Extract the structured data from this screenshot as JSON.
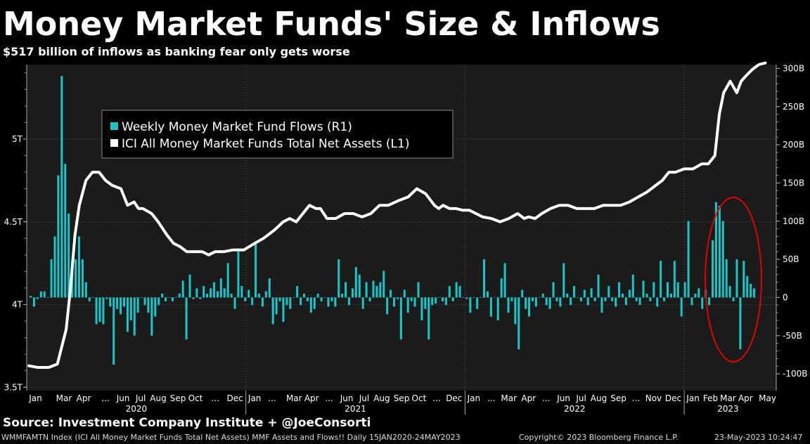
{
  "header": {
    "title": "Money Market Funds' Size & Inflows",
    "subtitle": "$517 billion of inflows as banking fear only gets worse"
  },
  "source": "Source: Investment Company Institute + @JoeConsorti",
  "footer": {
    "ticker": "WMMFAMTN Index (ICI All Money Market Funds Total Net Assets) MMF Assets and Flows!!  Daily 15JAN2020-24MAY2023",
    "copyright": "Copyright© 2023 Bloomberg Finance L.P.",
    "timestamp": "23-May-2023 10:24:47"
  },
  "colors": {
    "background": "#000000",
    "plot_bg": "#1b1b1b",
    "bars": "#1cc4c8",
    "line": "#ffffff",
    "highlight": "#e00000"
  },
  "chart_data": {
    "type": "bar+line",
    "legend": {
      "placement": "top-left",
      "entries": [
        "Weekly Money Market Fund Flows (R1)",
        "ICI All Money Market Funds Total Net Assets  (L1)"
      ]
    },
    "left_axis": {
      "ticks": [
        "5T",
        "4.5T",
        "4T",
        "3.5T"
      ],
      "range": [
        3.48,
        5.45
      ],
      "unit": "USD trillions"
    },
    "right_axis": {
      "ticks": [
        "300B",
        "250B",
        "200B",
        "150B",
        "100B",
        "50B",
        "0",
        "-50B",
        "-100B"
      ],
      "range": [
        -122,
        305
      ],
      "unit": "USD billions"
    },
    "x_axis": {
      "months": [
        "Jan",
        "Mar",
        "Apr",
        "...",
        "Jun",
        "Jul",
        "Aug",
        "Sep",
        "Oct",
        "...",
        "Dec",
        "Jan",
        "...",
        "Mar",
        "Apr",
        "...",
        "Jun",
        "Jul",
        "Aug",
        "Sep",
        "Oct",
        "...",
        "Dec",
        "Jan",
        "...",
        "Mar",
        "Apr",
        "...",
        "Jun",
        "Jul",
        "Aug",
        "Sep",
        "...",
        "Nov",
        "Dec",
        "Jan",
        "Feb",
        "Mar",
        "Apr",
        "May"
      ],
      "years": [
        "2020",
        "2021",
        "2022",
        "2023"
      ],
      "range": [
        2020.0,
        2023.42
      ]
    },
    "series": [
      {
        "name": "Weekly Money Market Fund Flows (R1)",
        "type": "bar",
        "axis": "right",
        "values": [
          2,
          -12,
          -2,
          8,
          8,
          0,
          50,
          80,
          160,
          290,
          175,
          110,
          50,
          50,
          80,
          50,
          20,
          -5,
          0,
          -35,
          -32,
          -35,
          -2,
          -12,
          -88,
          -15,
          -22,
          -12,
          -45,
          -30,
          -50,
          -20,
          0,
          -10,
          -20,
          -50,
          -25,
          -10,
          5,
          -5,
          0,
          -5,
          0,
          5,
          22,
          -55,
          30,
          -2,
          12,
          -2,
          15,
          5,
          12,
          20,
          8,
          25,
          12,
          45,
          5,
          -15,
          60,
          15,
          -5,
          10,
          -10,
          70,
          5,
          -12,
          8,
          25,
          -35,
          -22,
          -5,
          -32,
          -10,
          -15,
          0,
          15,
          -10,
          5,
          -5,
          -20,
          -15,
          5,
          -5,
          0,
          -12,
          -5,
          -12,
          50,
          5,
          20,
          -10,
          12,
          40,
          30,
          -15,
          20,
          -5,
          22,
          15,
          20,
          35,
          -22,
          10,
          -12,
          -2,
          -55,
          10,
          -20,
          -5,
          -12,
          20,
          -30,
          -15,
          -55,
          -10,
          -8,
          0,
          -5,
          -10,
          15,
          -5,
          20,
          15,
          0,
          -2,
          -20,
          0,
          -15,
          0,
          50,
          8,
          -25,
          0,
          -30,
          25,
          45,
          -20,
          -5,
          -35,
          -68,
          10,
          -15,
          -25,
          -5,
          -12,
          0,
          5,
          -10,
          -15,
          20,
          -5,
          -12,
          45,
          5,
          -10,
          15,
          0,
          -5,
          10,
          -10,
          12,
          -5,
          30,
          -20,
          -5,
          15,
          -5,
          -12,
          20,
          5,
          -10,
          10,
          30,
          -5,
          -10,
          22,
          5,
          -5,
          20,
          -12,
          48,
          -5,
          20,
          5,
          48,
          20,
          -25,
          20,
          100,
          -10,
          5,
          12,
          -15,
          10,
          -10,
          75,
          125,
          120,
          100,
          50,
          15,
          -5,
          50,
          -68,
          48,
          28,
          18,
          12
        ]
      },
      {
        "name": "ICI All Money Market Funds Total Net Assets  (L1)",
        "type": "line",
        "axis": "left",
        "x": [
          2020.01,
          2020.05,
          2020.1,
          2020.14,
          2020.18,
          2020.2,
          2020.22,
          2020.24,
          2020.27,
          2020.3,
          2020.33,
          2020.36,
          2020.39,
          2020.43,
          2020.46,
          2020.49,
          2020.51,
          2020.53,
          2020.57,
          2020.6,
          2020.64,
          2020.67,
          2020.7,
          2020.73,
          2020.76,
          2020.8,
          2020.83,
          2020.86,
          2020.9,
          2020.94,
          2020.99,
          2021.04,
          2021.08,
          2021.13,
          2021.17,
          2021.2,
          2021.23,
          2021.26,
          2021.29,
          2021.32,
          2021.34,
          2021.37,
          2021.41,
          2021.45,
          2021.49,
          2021.53,
          2021.57,
          2021.61,
          2021.65,
          2021.7,
          2021.74,
          2021.78,
          2021.82,
          2021.86,
          2021.88,
          2021.9,
          2021.93,
          2021.96,
          2021.99,
          2022.02,
          2022.05,
          2022.08,
          2022.12,
          2022.16,
          2022.2,
          2022.24,
          2022.27,
          2022.29,
          2022.32,
          2022.35,
          2022.39,
          2022.43,
          2022.47,
          2022.51,
          2022.55,
          2022.59,
          2022.63,
          2022.67,
          2022.71,
          2022.75,
          2022.79,
          2022.83,
          2022.87,
          2022.9,
          2022.93,
          2022.96,
          2023.0,
          2023.04,
          2023.08,
          2023.11,
          2023.14,
          2023.16,
          2023.18,
          2023.21,
          2023.24,
          2023.26,
          2023.28,
          2023.31,
          2023.34,
          2023.37
        ],
        "values": [
          3.63,
          3.62,
          3.62,
          3.64,
          3.85,
          4.1,
          4.42,
          4.6,
          4.75,
          4.8,
          4.8,
          4.75,
          4.72,
          4.7,
          4.6,
          4.62,
          4.58,
          4.58,
          4.55,
          4.5,
          4.42,
          4.37,
          4.35,
          4.32,
          4.32,
          4.32,
          4.3,
          4.32,
          4.32,
          4.33,
          4.33,
          4.37,
          4.4,
          4.45,
          4.5,
          4.52,
          4.5,
          4.55,
          4.6,
          4.58,
          4.58,
          4.52,
          4.52,
          4.55,
          4.55,
          4.53,
          4.55,
          4.6,
          4.6,
          4.63,
          4.65,
          4.7,
          4.67,
          4.6,
          4.58,
          4.6,
          4.58,
          4.58,
          4.57,
          4.57,
          4.55,
          4.53,
          4.52,
          4.5,
          4.52,
          4.55,
          4.52,
          4.53,
          4.52,
          4.55,
          4.58,
          4.6,
          4.6,
          4.58,
          4.58,
          4.58,
          4.6,
          4.6,
          4.6,
          4.62,
          4.65,
          4.68,
          4.72,
          4.75,
          4.8,
          4.8,
          4.82,
          4.82,
          4.85,
          4.85,
          4.9,
          5.15,
          5.28,
          5.35,
          5.28,
          5.35,
          5.38,
          5.42,
          5.45,
          5.46
        ]
      }
    ]
  }
}
